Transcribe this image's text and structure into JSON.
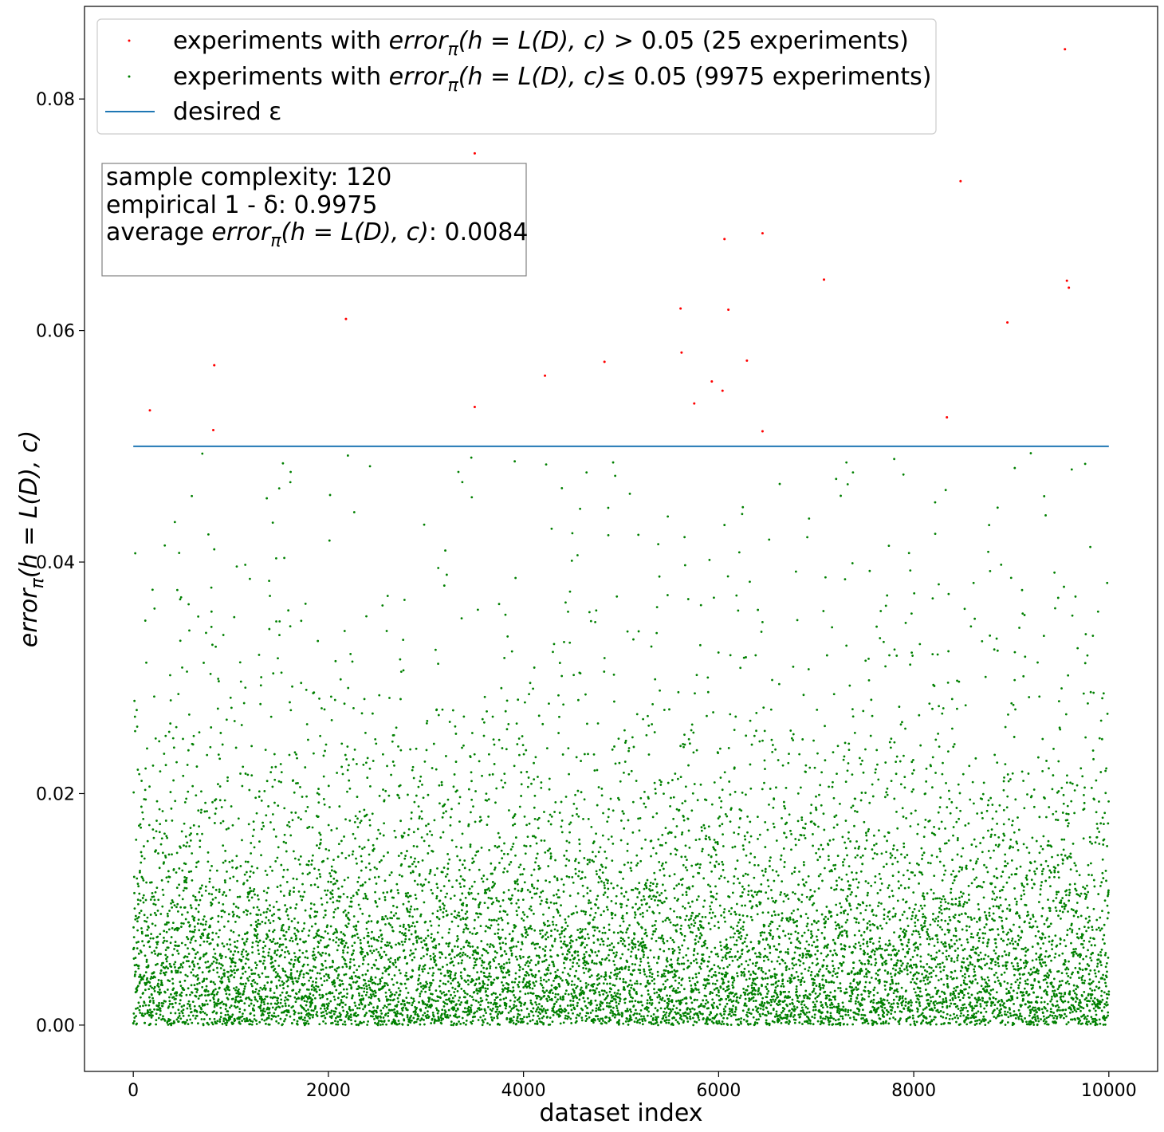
{
  "chart_data": {
    "type": "scatter",
    "title": "",
    "xlabel": "dataset index",
    "ylabel": "error_π(h = L(D), c)",
    "xlim": [
      -500,
      10500
    ],
    "ylim": [
      -0.004,
      0.088
    ],
    "xticks": [
      0,
      2000,
      4000,
      6000,
      8000,
      10000
    ],
    "xtick_labels": [
      "0",
      "2000",
      "4000",
      "6000",
      "8000",
      "10000"
    ],
    "yticks": [
      0.0,
      0.02,
      0.04,
      0.06,
      0.08
    ],
    "ytick_labels": [
      "0.00",
      "0.02",
      "0.04",
      "0.06",
      "0.08"
    ],
    "grid": false,
    "legend_position": "top-left",
    "legend": {
      "red_prefix": "experiments with ",
      "red_suffix": " > 0.05 (25 experiments)",
      "green_prefix": "experiments with ",
      "green_suffix": "≤ 0.05 (9975 experiments)",
      "line_label": "desired ε",
      "error_term": "error",
      "error_sub": "π",
      "error_args": "(h = L(D), c)"
    },
    "annotation": {
      "line1": "sample complexity: 120",
      "line2": "empirical 1 - δ: 0.9975",
      "line3_prefix": "average ",
      "line3_suffix": ": 0.0084"
    },
    "reference_line": {
      "label": "desired ε",
      "y": 0.05,
      "x_start": 0,
      "x_end": 10000,
      "color": "#1f77b4"
    },
    "series": [
      {
        "name": "experiments with error_π(h = L(D), c) > 0.05 (25 experiments)",
        "color": "#ff0000",
        "points": [
          [
            170,
            0.0531
          ],
          [
            820,
            0.0514
          ],
          [
            830,
            0.057
          ],
          [
            2180,
            0.061
          ],
          [
            3500,
            0.0753
          ],
          [
            3500,
            0.0534
          ],
          [
            4220,
            0.0561
          ],
          [
            4830,
            0.0573
          ],
          [
            5610,
            0.0619
          ],
          [
            5620,
            0.0581
          ],
          [
            5750,
            0.0537
          ],
          [
            5930,
            0.0556
          ],
          [
            6040,
            0.0548
          ],
          [
            6060,
            0.0679
          ],
          [
            6100,
            0.0618
          ],
          [
            6290,
            0.0574
          ],
          [
            6450,
            0.0684
          ],
          [
            6450,
            0.0513
          ],
          [
            7080,
            0.0644
          ],
          [
            8340,
            0.0525
          ],
          [
            8480,
            0.0729
          ],
          [
            8960,
            0.0607
          ],
          [
            9550,
            0.0843
          ],
          [
            9570,
            0.0643
          ],
          [
            9590,
            0.0637
          ]
        ]
      },
      {
        "name": "experiments with error_π(h = L(D), c)≤ 0.05 (9975 experiments)",
        "color": "#008000",
        "count": 9975,
        "x_range": [
          0,
          10000
        ],
        "mean": 0.0084,
        "max": 0.0494,
        "sample_points": [
          [
            2200,
            0.0492
          ],
          [
            3910,
            0.0487
          ],
          [
            7310,
            0.0486
          ],
          [
            7800,
            0.0489
          ],
          [
            9200,
            0.0494
          ],
          [
            9620,
            0.048
          ],
          [
            1610,
            0.0469
          ],
          [
            3470,
            0.0456
          ],
          [
            1430,
            0.0434
          ],
          [
            8860,
            0.0447
          ],
          [
            600,
            0.0457
          ],
          [
            5090,
            0.0459
          ],
          [
            830,
            0.0411
          ],
          [
            9810,
            0.0413
          ],
          [
            4580,
            0.0446
          ],
          [
            6060,
            0.0432
          ]
        ]
      }
    ]
  }
}
